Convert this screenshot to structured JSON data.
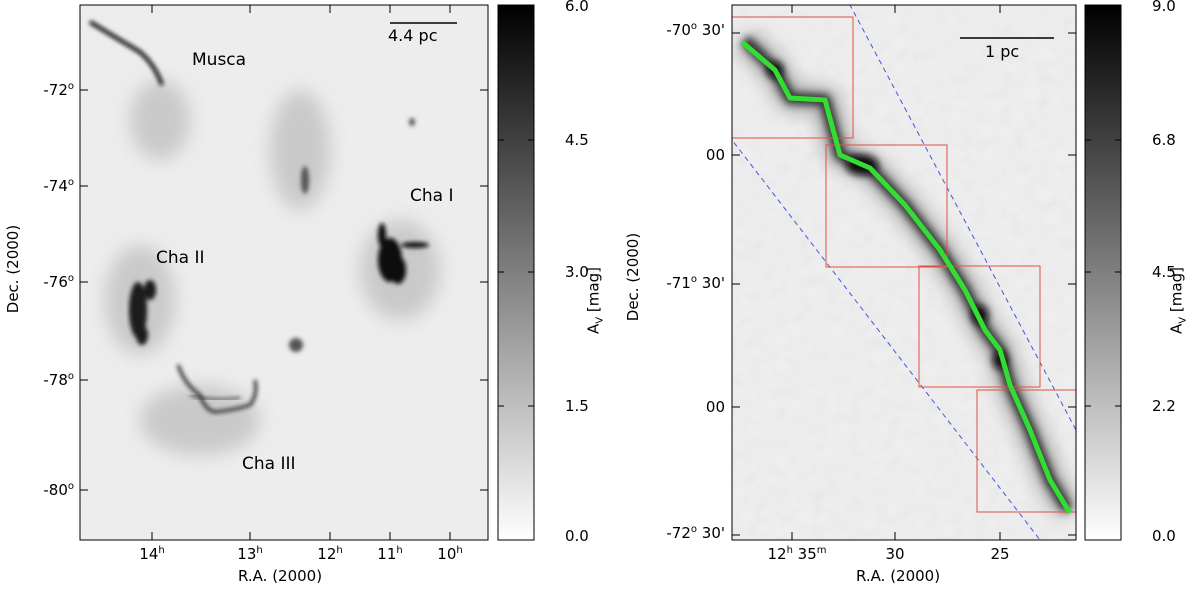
{
  "left_panel": {
    "region_labels": {
      "musca": "Musca",
      "cha_i": "Cha I",
      "cha_ii": "Cha II",
      "cha_iii": "Cha III"
    },
    "scalebar_label": "4.4  pc",
    "y_ticks": [
      {
        "deg": "-72",
        "sup": "o"
      },
      {
        "deg": "-74",
        "sup": "o"
      },
      {
        "deg": "-76",
        "sup": "o"
      },
      {
        "deg": "-78",
        "sup": "o"
      },
      {
        "deg": "-80",
        "sup": "o"
      }
    ],
    "x_ticks": [
      {
        "v": "14",
        "sup": "h"
      },
      {
        "v": "13",
        "sup": "h"
      },
      {
        "v": "12",
        "sup": "h"
      },
      {
        "v": "11",
        "sup": "h"
      },
      {
        "v": "10",
        "sup": "h"
      }
    ],
    "x_label": "R.A. (2000)",
    "y_label": "Dec. (2000)",
    "colorbar_ticks": [
      "6.0",
      "4.5",
      "3.0",
      "1.5",
      "0.0"
    ],
    "colorbar_label_main": "A",
    "colorbar_label_sub": "V",
    "colorbar_label_unit": "[mag]"
  },
  "right_panel": {
    "scalebar_label": "1  pc",
    "y_ticks": [
      {
        "deg": "-70",
        "sup": "o",
        "min": "30'"
      },
      {
        "deg": "",
        "sup": "",
        "min": "00"
      },
      {
        "deg": "-71",
        "sup": "o",
        "min": "30'"
      },
      {
        "deg": "",
        "sup": "",
        "min": "00"
      },
      {
        "deg": "-72",
        "sup": "o",
        "min": "30'"
      }
    ],
    "x_ticks": [
      {
        "text": "12",
        "sup": "h",
        "text2": " 35",
        "sup2": "m"
      },
      {
        "text": "30",
        "sup": "",
        "text2": "",
        "sup2": ""
      },
      {
        "text": "25",
        "sup": "",
        "text2": "",
        "sup2": ""
      }
    ],
    "x_label": "R.A. (2000)",
    "y_label": "Dec. (2000)",
    "colorbar_ticks": [
      "9.0",
      "6.8",
      "4.5",
      "2.2",
      "0.0"
    ],
    "colorbar_label_main": "A",
    "colorbar_label_sub": "V",
    "colorbar_label_unit": "[mag]"
  },
  "colors": {
    "filament_spine": "#33dd33",
    "boxes": "#e05040",
    "strip": "#4455dd"
  }
}
